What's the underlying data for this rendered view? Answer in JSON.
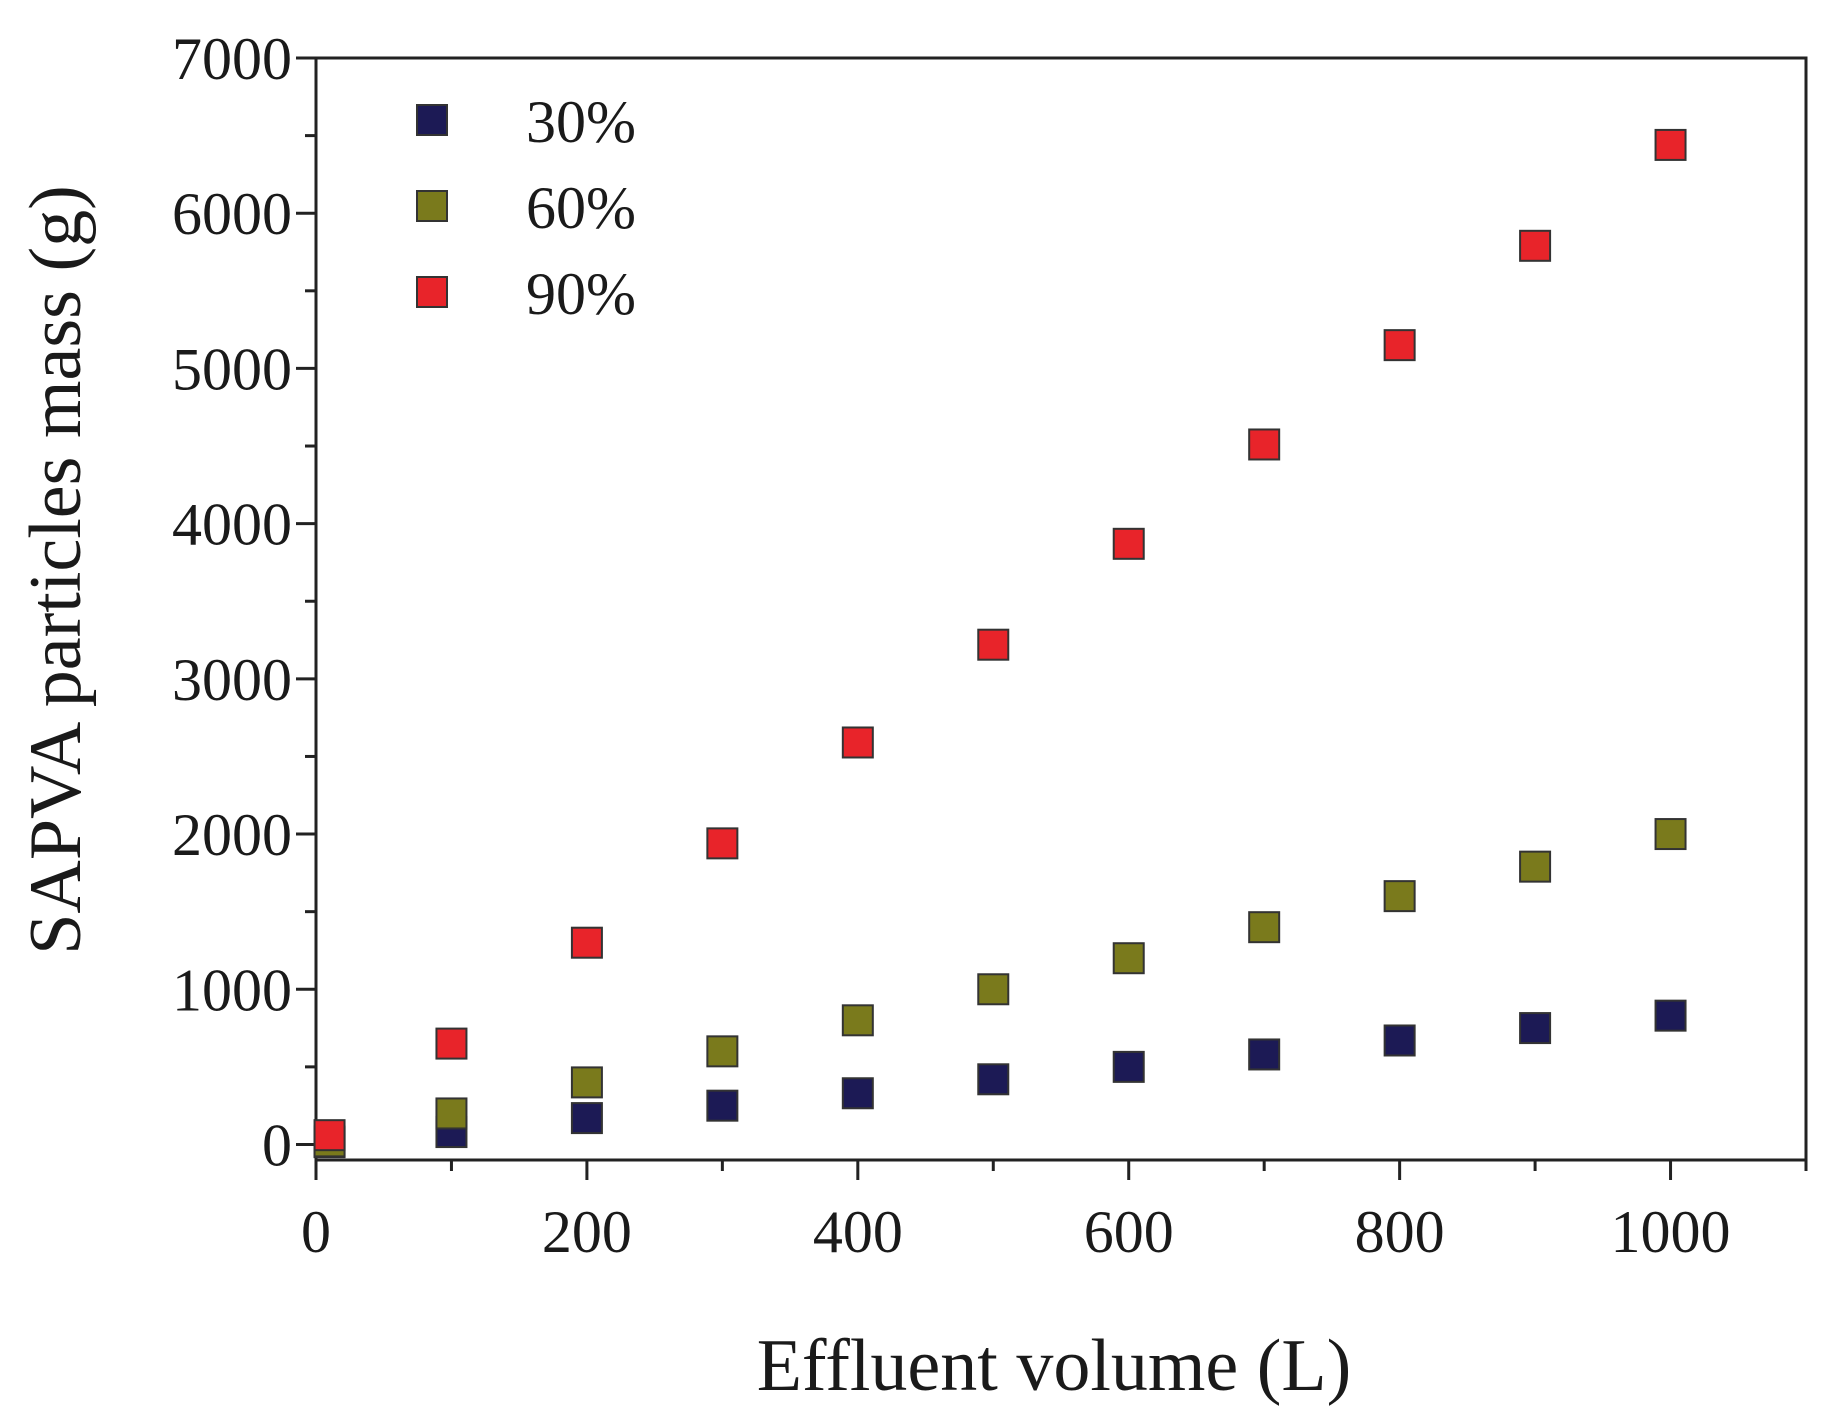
{
  "chart_data": {
    "type": "scatter",
    "title": "",
    "xlabel": "Effluent volume (L)",
    "ylabel": "SAPVA particles mass (g)",
    "xlim": [
      0,
      1100
    ],
    "ylim": [
      -100,
      7000
    ],
    "x_ticks": [
      0,
      200,
      400,
      600,
      800,
      1000
    ],
    "y_ticks": [
      0,
      1000,
      2000,
      3000,
      4000,
      5000,
      6000,
      7000
    ],
    "x_tick_labels": [
      "0",
      "200",
      "400",
      "600",
      "800",
      "1000"
    ],
    "y_tick_labels": [
      "0",
      "1000",
      "2000",
      "3000",
      "4000",
      "5000",
      "6000",
      "7000"
    ],
    "legend_position": "top-left",
    "grid": false,
    "series": [
      {
        "name": "30%",
        "color": "#1c1a55",
        "x": [
          10,
          100,
          200,
          300,
          400,
          500,
          600,
          700,
          800,
          900,
          1000
        ],
        "y": [
          15,
          80,
          170,
          250,
          330,
          420,
          500,
          580,
          670,
          750,
          830
        ]
      },
      {
        "name": "60%",
        "color": "#7a7a1c",
        "x": [
          10,
          100,
          200,
          300,
          400,
          500,
          600,
          700,
          800,
          900,
          1000
        ],
        "y": [
          20,
          200,
          400,
          600,
          800,
          1000,
          1200,
          1400,
          1600,
          1790,
          2000
        ]
      },
      {
        "name": "90%",
        "color": "#e8242a",
        "x": [
          10,
          100,
          200,
          300,
          400,
          500,
          600,
          700,
          800,
          900,
          1000
        ],
        "y": [
          60,
          650,
          1300,
          1940,
          2590,
          3220,
          3870,
          4510,
          5150,
          5790,
          6440
        ]
      }
    ]
  }
}
